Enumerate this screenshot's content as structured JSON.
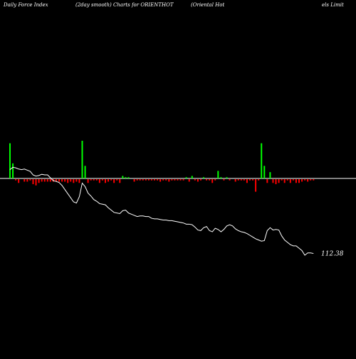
{
  "header": {
    "left": "Daily Force  Index",
    "center": "(2day smooth) Charts for ORIENTHOT",
    "right_a": "(Oriental Hot",
    "right_b": "els Limit"
  },
  "colors": {
    "background": "#000000",
    "positive": "#00ff00",
    "negative": "#ff0000",
    "line": "#ffffff",
    "zero_line": "#ffffff"
  },
  "chart_data": {
    "type": "bar",
    "title": "(2day smooth) Charts for ORIENTHOT",
    "xlabel": "",
    "ylabel": "",
    "grid": false,
    "legend": "none",
    "force_index": {
      "type": "bar",
      "ylim": [
        -10,
        30
      ],
      "values": [
        28,
        12,
        -1,
        -3,
        0,
        -2,
        -2,
        -1,
        -4,
        -5,
        -3,
        -2,
        -2,
        -2,
        -2,
        -2,
        -2,
        -2,
        -2,
        -2,
        -3,
        -2,
        -3,
        -2,
        -3,
        30,
        10,
        -3,
        -1,
        -1,
        -1,
        -3,
        -1,
        -3,
        -2,
        -1,
        -3,
        -1,
        -3,
        2,
        1,
        1,
        0,
        -2,
        -1,
        -1,
        -1,
        -1,
        -1,
        -1,
        -1,
        -1,
        -2,
        -1,
        -1,
        -2,
        -1,
        -1,
        -1,
        -1,
        -1,
        1,
        -2,
        2,
        -1,
        -2,
        -1,
        1,
        -1,
        -1,
        -3,
        -1,
        6,
        1,
        -1,
        1,
        -1,
        0,
        -2,
        -1,
        -1,
        -1,
        -3,
        -1,
        -1,
        -10,
        -1,
        28,
        10,
        -3,
        5,
        -3,
        -4,
        -3,
        -1,
        -3,
        -1,
        -3,
        -1,
        -3,
        -3,
        -2,
        -1,
        -2,
        -1,
        -1
      ]
    },
    "price": {
      "type": "line",
      "last_value_label": "112.38",
      "values": [
        0.4,
        0.2,
        0.25,
        0.35,
        0.4,
        0.35,
        0.45,
        0.55,
        0.85,
        0.95,
        0.9,
        0.8,
        0.85,
        0.85,
        1.1,
        1.35,
        1.4,
        1.5,
        1.75,
        2.1,
        2.45,
        2.8,
        3.15,
        3.25,
        2.7,
        1.55,
        1.85,
        2.4,
        2.65,
        2.95,
        3.1,
        3.3,
        3.35,
        3.4,
        3.65,
        3.85,
        4.05,
        4.1,
        4.15,
        3.9,
        3.85,
        4.1,
        4.2,
        4.3,
        4.4,
        4.35,
        4.35,
        4.4,
        4.4,
        4.55,
        4.6,
        4.6,
        4.65,
        4.7,
        4.7,
        4.75,
        4.75,
        4.8,
        4.85,
        4.9,
        4.95,
        5.05,
        5.05,
        5.1,
        5.3,
        5.55,
        5.6,
        5.35,
        5.25,
        5.6,
        5.7,
        5.4,
        5.5,
        5.7,
        5.5,
        5.2,
        5.1,
        5.2,
        5.45,
        5.6,
        5.7,
        5.75,
        5.85,
        6.0,
        6.15,
        6.3,
        6.4,
        6.5,
        6.45,
        5.6,
        5.35,
        5.55,
        5.5,
        5.55,
        6.05,
        6.4,
        6.6,
        6.8,
        6.9,
        6.9,
        7.1,
        7.3,
        7.7,
        7.5,
        7.5,
        7.55
      ]
    }
  }
}
